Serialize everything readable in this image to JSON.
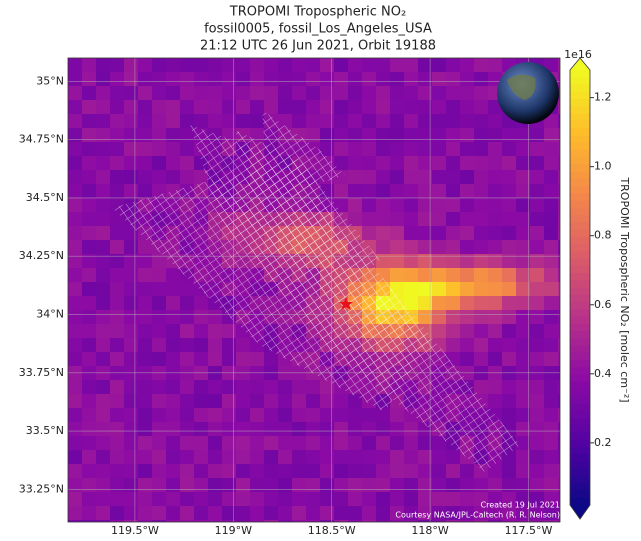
{
  "title": [
    "TROPOMI Tropospheric NO₂",
    "fossil0005, fossil_Los_Angeles_USA",
    "21:12 UTC 26 Jun 2021, Orbit 19188"
  ],
  "map": {
    "xlim": [
      -119.84,
      -117.34
    ],
    "ylim": [
      33.11,
      35.1
    ],
    "xticks": [
      {
        "value": -119.5,
        "label": "119.5°W"
      },
      {
        "value": -119,
        "label": "119°W"
      },
      {
        "value": -118.5,
        "label": "118.5°W"
      },
      {
        "value": -118,
        "label": "118°W"
      },
      {
        "value": -117.5,
        "label": "117.5°W"
      }
    ],
    "yticks": [
      {
        "value": 33.25,
        "label": "33.25°N"
      },
      {
        "value": 33.5,
        "label": "33.5°N"
      },
      {
        "value": 33.75,
        "label": "33.75°N"
      },
      {
        "value": 34,
        "label": "34°N"
      },
      {
        "value": 34.25,
        "label": "34.25°N"
      },
      {
        "value": 34.5,
        "label": "34.5°N"
      },
      {
        "value": 34.75,
        "label": "34.75°N"
      },
      {
        "value": 35,
        "label": "35°N"
      }
    ],
    "grid": true
  },
  "colorbar": {
    "lim": [
      0.02,
      1.28
    ],
    "ticks": [
      0.2,
      0.4,
      0.6,
      0.8,
      {
        "value": 1,
        "label": "1.0"
      },
      1.2
    ],
    "exponent": "1e16",
    "label": "TROPOMI Tropospheric NO₂ [molec cm⁻²]",
    "colormap": [
      "#0d0887",
      "#5302a3",
      "#8b0aa5",
      "#b83289",
      "#db5c68",
      "#f48849",
      "#febd2a",
      "#f0f921"
    ]
  },
  "credits": [
    "Created 19 Jul 2021",
    "Courtesy NASA/JPL-Caltech (R. R. Nelson)"
  ]
}
